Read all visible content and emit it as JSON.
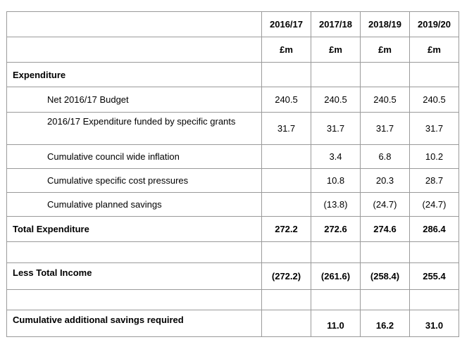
{
  "header": {
    "years": [
      "2016/17",
      "2017/18",
      "2018/19",
      "2019/20"
    ],
    "units": [
      "£m",
      "£m",
      "£m",
      "£m"
    ]
  },
  "rows": [
    {
      "label": "Expenditure",
      "values": [
        "",
        "",
        "",
        ""
      ]
    },
    {
      "label": "Net 2016/17 Budget",
      "values": [
        "240.5",
        "240.5",
        "240.5",
        "240.5"
      ]
    },
    {
      "label": "2016/17 Expenditure funded by specific grants",
      "values": [
        "31.7",
        "31.7",
        "31.7",
        "31.7"
      ]
    },
    {
      "label": "Cumulative council wide inflation",
      "values": [
        "",
        "3.4",
        "6.8",
        "10.2"
      ]
    },
    {
      "label": "Cumulative specific cost pressures",
      "values": [
        "",
        "10.8",
        "20.3",
        "28.7"
      ]
    },
    {
      "label": "Cumulative planned savings",
      "values": [
        "",
        "(13.8)",
        "(24.7)",
        "(24.7)"
      ]
    },
    {
      "label": "Total Expenditure",
      "values": [
        "272.2",
        "272.6",
        "274.6",
        "286.4"
      ]
    },
    {
      "label": "",
      "values": [
        "",
        "",
        "",
        ""
      ]
    },
    {
      "label": "Less Total Income",
      "values": [
        "(272.2)",
        "(261.6)",
        "(258.4)",
        "255.4"
      ]
    },
    {
      "label": "",
      "values": [
        "",
        "",
        "",
        ""
      ]
    },
    {
      "label": "Cumulative additional savings required",
      "values": [
        "",
        "11.0",
        "16.2",
        "31.0"
      ]
    }
  ]
}
